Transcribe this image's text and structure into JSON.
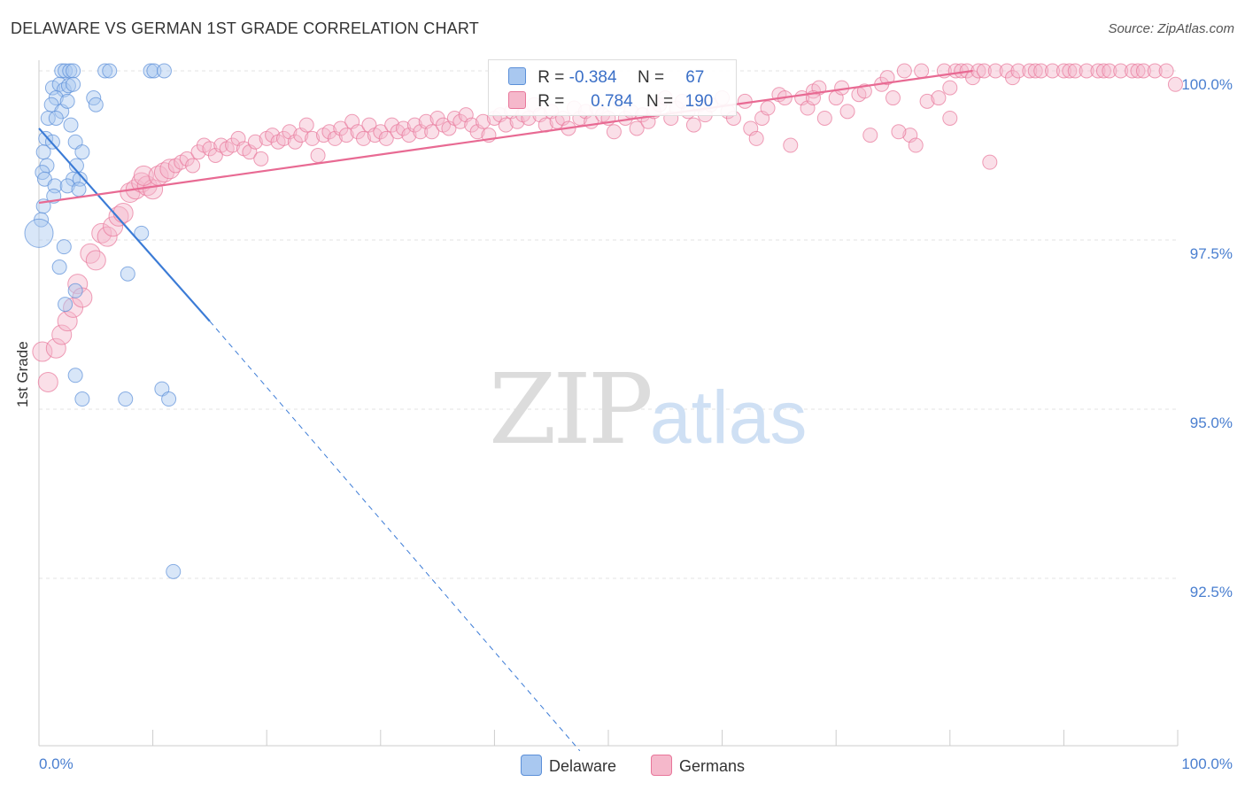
{
  "chart_data": {
    "type": "scatter",
    "title": "DELAWARE VS GERMAN 1ST GRADE CORRELATION CHART",
    "source": "Source: ZipAtlas.com",
    "ylabel": "1st Grade",
    "xlabel": "",
    "xlim": [
      0,
      100
    ],
    "ylim": [
      90.0,
      100.4
    ],
    "y_ticks": [
      "100.0%",
      "97.5%",
      "95.0%",
      "92.5%"
    ],
    "y_tick_values": [
      100.0,
      97.5,
      95.0,
      92.5
    ],
    "x_tick_labels": [
      "0.0%",
      "100.0%"
    ],
    "watermark_zip": "ZIP",
    "watermark_atlas": "atlas",
    "series": [
      {
        "name": "Delaware",
        "color": "#5b8fd8",
        "fill": "#a9c8f0",
        "R_label": "R =",
        "R": "-0.384",
        "N_label": "N =",
        "N": "67",
        "trend": {
          "x0": 0.0,
          "y0": 99.15,
          "x1": 15.0,
          "y1": 96.3,
          "dash_to_x": 47.5,
          "dash_to_y": 89.95
        },
        "points": [
          [
            2.0,
            100
          ],
          [
            2.3,
            100
          ],
          [
            2.7,
            100
          ],
          [
            3.0,
            100
          ],
          [
            5.8,
            100
          ],
          [
            6.2,
            100
          ],
          [
            9.8,
            100
          ],
          [
            10.1,
            100
          ],
          [
            11.0,
            100
          ],
          [
            1.2,
            99.75
          ],
          [
            1.8,
            99.8
          ],
          [
            2.2,
            99.72
          ],
          [
            2.6,
            99.78
          ],
          [
            3.0,
            99.8
          ],
          [
            1.5,
            99.6
          ],
          [
            1.1,
            99.5
          ],
          [
            2.0,
            99.4
          ],
          [
            4.8,
            99.6
          ],
          [
            5.0,
            99.5
          ],
          [
            2.5,
            99.55
          ],
          [
            0.8,
            99.3
          ],
          [
            1.5,
            99.3
          ],
          [
            2.8,
            99.2
          ],
          [
            0.6,
            99.0
          ],
          [
            1.2,
            98.95
          ],
          [
            3.2,
            98.95
          ],
          [
            0.4,
            98.8
          ],
          [
            3.8,
            98.8
          ],
          [
            0.7,
            98.6
          ],
          [
            3.3,
            98.6
          ],
          [
            0.3,
            98.5
          ],
          [
            0.5,
            98.4
          ],
          [
            3.0,
            98.4
          ],
          [
            3.6,
            98.4
          ],
          [
            1.4,
            98.3
          ],
          [
            2.5,
            98.3
          ],
          [
            3.5,
            98.25
          ],
          [
            1.3,
            98.15
          ],
          [
            0.4,
            98.0
          ],
          [
            0.2,
            97.8
          ],
          [
            0.0,
            97.6
          ],
          [
            9.0,
            97.6
          ],
          [
            2.2,
            97.4
          ],
          [
            1.8,
            97.1
          ],
          [
            7.8,
            97.0
          ],
          [
            3.2,
            96.75
          ],
          [
            2.3,
            96.55
          ],
          [
            3.2,
            95.5
          ],
          [
            3.8,
            95.15
          ],
          [
            7.6,
            95.15
          ],
          [
            10.8,
            95.3
          ],
          [
            11.4,
            95.15
          ],
          [
            11.8,
            92.6
          ]
        ]
      },
      {
        "name": "Germans",
        "color": "#e8769a",
        "fill": "#f5b8cb",
        "R_label": "R =",
        "R": "0.784",
        "N_label": "N =",
        "N": "190",
        "trend": {
          "x0": 0.0,
          "y0": 98.05,
          "x1": 82.0,
          "y1": 100.0
        },
        "points": [
          [
            0.3,
            95.85
          ],
          [
            0.8,
            95.4
          ],
          [
            1.5,
            95.9
          ],
          [
            2.0,
            96.1
          ],
          [
            2.5,
            96.3
          ],
          [
            3.0,
            96.5
          ],
          [
            3.4,
            96.85
          ],
          [
            3.8,
            96.65
          ],
          [
            4.5,
            97.3
          ],
          [
            5.0,
            97.2
          ],
          [
            5.5,
            97.6
          ],
          [
            6.0,
            97.55
          ],
          [
            6.5,
            97.7
          ],
          [
            7.0,
            97.85
          ],
          [
            7.4,
            97.9
          ],
          [
            8.0,
            98.2
          ],
          [
            8.5,
            98.25
          ],
          [
            9.0,
            98.35
          ],
          [
            9.5,
            98.3
          ],
          [
            10.0,
            98.25
          ],
          [
            9.2,
            98.45
          ],
          [
            10.5,
            98.45
          ],
          [
            11.0,
            98.5
          ],
          [
            11.5,
            98.55
          ],
          [
            12.0,
            98.6
          ],
          [
            12.5,
            98.65
          ],
          [
            13.0,
            98.7
          ],
          [
            13.5,
            98.6
          ],
          [
            14.0,
            98.8
          ],
          [
            14.5,
            98.9
          ],
          [
            15.0,
            98.85
          ],
          [
            15.5,
            98.75
          ],
          [
            16.0,
            98.9
          ],
          [
            16.5,
            98.85
          ],
          [
            17.0,
            98.9
          ],
          [
            17.5,
            99.0
          ],
          [
            18.0,
            98.85
          ],
          [
            18.5,
            98.8
          ],
          [
            19.0,
            98.95
          ],
          [
            19.5,
            98.7
          ],
          [
            20.0,
            99.0
          ],
          [
            20.5,
            99.05
          ],
          [
            21.0,
            98.95
          ],
          [
            21.5,
            99.0
          ],
          [
            22.0,
            99.1
          ],
          [
            22.5,
            98.95
          ],
          [
            23.0,
            99.05
          ],
          [
            23.5,
            99.2
          ],
          [
            24.0,
            99.0
          ],
          [
            24.5,
            98.75
          ],
          [
            25.0,
            99.05
          ],
          [
            25.5,
            99.1
          ],
          [
            26.0,
            99.0
          ],
          [
            26.5,
            99.15
          ],
          [
            27.0,
            99.05
          ],
          [
            27.5,
            99.25
          ],
          [
            28.0,
            99.1
          ],
          [
            28.5,
            99.0
          ],
          [
            29.0,
            99.2
          ],
          [
            29.5,
            99.05
          ],
          [
            30.0,
            99.1
          ],
          [
            30.5,
            99.0
          ],
          [
            31.0,
            99.2
          ],
          [
            31.5,
            99.1
          ],
          [
            32.0,
            99.15
          ],
          [
            32.5,
            99.05
          ],
          [
            33.0,
            99.2
          ],
          [
            33.5,
            99.1
          ],
          [
            34.0,
            99.25
          ],
          [
            34.5,
            99.1
          ],
          [
            35.0,
            99.3
          ],
          [
            35.5,
            99.2
          ],
          [
            36.0,
            99.15
          ],
          [
            36.5,
            99.3
          ],
          [
            37.0,
            99.25
          ],
          [
            37.5,
            99.35
          ],
          [
            38.0,
            99.2
          ],
          [
            38.5,
            99.1
          ],
          [
            39.0,
            99.25
          ],
          [
            39.5,
            99.05
          ],
          [
            40.0,
            99.3
          ],
          [
            40.5,
            99.35
          ],
          [
            41.0,
            99.2
          ],
          [
            41.5,
            99.4
          ],
          [
            42.0,
            99.25
          ],
          [
            42.5,
            99.35
          ],
          [
            43.0,
            99.3
          ],
          [
            43.5,
            99.5
          ],
          [
            44.0,
            99.35
          ],
          [
            44.5,
            99.2
          ],
          [
            45.0,
            99.4
          ],
          [
            45.5,
            99.25
          ],
          [
            46.0,
            99.3
          ],
          [
            46.5,
            99.15
          ],
          [
            47.0,
            99.45
          ],
          [
            47.5,
            99.3
          ],
          [
            48.0,
            99.4
          ],
          [
            48.5,
            99.25
          ],
          [
            49.0,
            99.45
          ],
          [
            49.5,
            99.35
          ],
          [
            50.0,
            99.3
          ],
          [
            50.5,
            99.1
          ],
          [
            51.0,
            99.55
          ],
          [
            51.5,
            99.3
          ],
          [
            52.0,
            99.4
          ],
          [
            52.5,
            99.15
          ],
          [
            53.0,
            99.35
          ],
          [
            53.5,
            99.25
          ],
          [
            54.0,
            99.4
          ],
          [
            54.5,
            99.5
          ],
          [
            55.0,
            99.6
          ],
          [
            55.5,
            99.3
          ],
          [
            56.0,
            99.45
          ],
          [
            56.5,
            99.55
          ],
          [
            57.0,
            99.4
          ],
          [
            57.5,
            99.2
          ],
          [
            58.0,
            99.5
          ],
          [
            58.5,
            99.35
          ],
          [
            59.0,
            99.5
          ],
          [
            60.0,
            99.6
          ],
          [
            60.5,
            99.4
          ],
          [
            61.0,
            99.3
          ],
          [
            62.0,
            99.55
          ],
          [
            62.5,
            99.15
          ],
          [
            63.0,
            99.0
          ],
          [
            63.5,
            99.3
          ],
          [
            64.0,
            99.45
          ],
          [
            65.0,
            99.65
          ],
          [
            65.5,
            99.6
          ],
          [
            66.0,
            98.9
          ],
          [
            67.0,
            99.6
          ],
          [
            67.5,
            99.45
          ],
          [
            68.0,
            99.7
          ],
          [
            68.5,
            99.75
          ],
          [
            69.0,
            99.3
          ],
          [
            70.0,
            99.6
          ],
          [
            70.5,
            99.75
          ],
          [
            71.0,
            99.4
          ],
          [
            72.0,
            99.65
          ],
          [
            72.5,
            99.7
          ],
          [
            73.0,
            99.05
          ],
          [
            74.0,
            99.8
          ],
          [
            74.5,
            99.9
          ],
          [
            75.0,
            99.6
          ],
          [
            76.0,
            100.0
          ],
          [
            76.5,
            99.05
          ],
          [
            77.0,
            98.9
          ],
          [
            77.5,
            100.0
          ],
          [
            78.0,
            99.55
          ],
          [
            79.0,
            99.6
          ],
          [
            79.5,
            100.0
          ],
          [
            80.0,
            99.75
          ],
          [
            80.5,
            100.0
          ],
          [
            81.0,
            100.0
          ],
          [
            81.5,
            100.0
          ],
          [
            82.0,
            99.9
          ],
          [
            82.5,
            100.0
          ],
          [
            83.0,
            100.0
          ],
          [
            83.5,
            98.65
          ],
          [
            84.0,
            100.0
          ],
          [
            85.0,
            100.0
          ],
          [
            85.5,
            99.9
          ],
          [
            86.0,
            100.0
          ],
          [
            87.0,
            100.0
          ],
          [
            87.5,
            100.0
          ],
          [
            88.0,
            100.0
          ],
          [
            89.0,
            100.0
          ],
          [
            90.0,
            100.0
          ],
          [
            90.5,
            100.0
          ],
          [
            91.0,
            100.0
          ],
          [
            92.0,
            100.0
          ],
          [
            93.0,
            100.0
          ],
          [
            93.5,
            100.0
          ],
          [
            94.0,
            100.0
          ],
          [
            95.0,
            100.0
          ],
          [
            96.0,
            100.0
          ],
          [
            96.5,
            100.0
          ],
          [
            97.0,
            100.0
          ],
          [
            98.0,
            100.0
          ],
          [
            99.0,
            100.0
          ],
          [
            99.8,
            99.8
          ],
          [
            80.0,
            99.3
          ],
          [
            75.5,
            99.1
          ],
          [
            68.0,
            99.6
          ]
        ]
      }
    ]
  }
}
